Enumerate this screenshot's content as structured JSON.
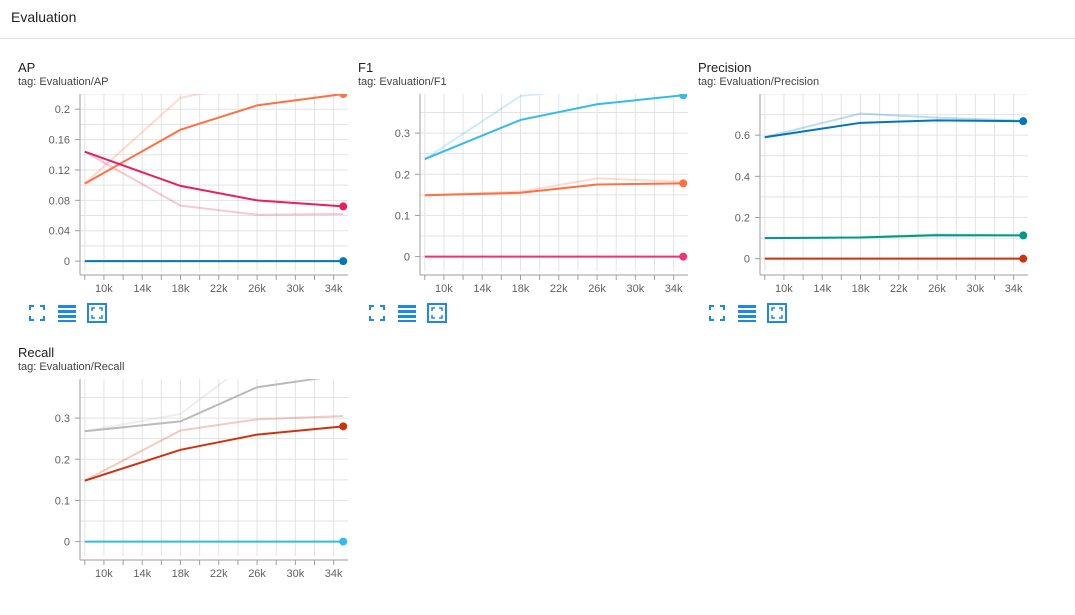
{
  "section": {
    "title": "Evaluation"
  },
  "toolbar_icons": [
    "expand-icon",
    "toggle-log-scale-icon",
    "fit-domain-icon"
  ],
  "charts": [
    {
      "id": "ap",
      "title": "AP",
      "tag": "tag: Evaluation/AP",
      "chart_data": {
        "type": "line",
        "x_ticks": [
          "10k",
          "14k",
          "18k",
          "22k",
          "26k",
          "30k",
          "34k"
        ],
        "x_tick_values": [
          10000,
          14000,
          18000,
          22000,
          26000,
          30000,
          34000
        ],
        "y_ticks": [
          "0",
          "0.04",
          "0.08",
          "0.12",
          "0.16",
          "0.2"
        ],
        "y_tick_values": [
          0,
          0.04,
          0.08,
          0.12,
          0.16,
          0.2
        ],
        "xlim": [
          7500,
          35500
        ],
        "ylim": [
          -0.013,
          0.22
        ],
        "grid": true,
        "series": [
          {
            "color": "#ff7043",
            "x": [
              8000,
              18000,
              26000,
              35000
            ],
            "values": [
              0.102,
              0.173,
              0.205,
              0.22
            ],
            "raw_x": [
              8000,
              18000,
              26000,
              35000
            ],
            "raw_values": [
              0.102,
              0.215,
              0.235,
              0.245
            ]
          },
          {
            "color": "#e91e63",
            "x": [
              8000,
              18000,
              26000,
              35000
            ],
            "values": [
              0.144,
              0.099,
              0.08,
              0.072
            ],
            "raw_x": [
              8000,
              18000,
              26000,
              35000
            ],
            "raw_values": [
              0.144,
              0.073,
              0.061,
              0.062
            ]
          },
          {
            "color": "#0077bb",
            "x": [
              8000,
              18000,
              26000,
              35000
            ],
            "values": [
              0,
              0,
              0,
              0
            ],
            "raw_x": [
              8000,
              18000,
              26000,
              35000
            ],
            "raw_values": [
              0,
              0,
              0,
              0
            ]
          }
        ]
      }
    },
    {
      "id": "f1",
      "title": "F1",
      "tag": "tag: Evaluation/F1",
      "chart_data": {
        "type": "line",
        "x_ticks": [
          "10k",
          "14k",
          "18k",
          "22k",
          "26k",
          "30k",
          "34k"
        ],
        "x_tick_values": [
          10000,
          14000,
          18000,
          22000,
          26000,
          30000,
          34000
        ],
        "y_ticks": [
          "0",
          "0.1",
          "0.2",
          "0.3"
        ],
        "y_tick_values": [
          0,
          0.1,
          0.2,
          0.3
        ],
        "xlim": [
          7500,
          35500
        ],
        "ylim": [
          -0.035,
          0.395
        ],
        "grid": true,
        "series": [
          {
            "color": "#33bbee",
            "x": [
              8000,
              18000,
              26000,
              35000
            ],
            "values": [
              0.237,
              0.332,
              0.37,
              0.392
            ],
            "raw_x": [
              8000,
              18000,
              26000,
              35000
            ],
            "raw_values": [
              0.237,
              0.39,
              0.41,
              0.42
            ]
          },
          {
            "color": "#ff7043",
            "x": [
              8000,
              18000,
              26000,
              35000
            ],
            "values": [
              0.149,
              0.155,
              0.175,
              0.178
            ],
            "raw_x": [
              8000,
              18000,
              26000,
              35000
            ],
            "raw_values": [
              0.149,
              0.158,
              0.19,
              0.182
            ]
          },
          {
            "color": "#ee3377",
            "x": [
              8000,
              18000,
              26000,
              35000
            ],
            "values": [
              0,
              0,
              0,
              0
            ],
            "raw_x": [
              8000,
              18000,
              26000,
              35000
            ],
            "raw_values": [
              0,
              0,
              0,
              0
            ]
          }
        ]
      }
    },
    {
      "id": "precision",
      "title": "Precision",
      "tag": "tag: Evaluation/Precision",
      "chart_data": {
        "type": "line",
        "x_ticks": [
          "10k",
          "14k",
          "18k",
          "22k",
          "26k",
          "30k",
          "34k"
        ],
        "x_tick_values": [
          10000,
          14000,
          18000,
          22000,
          26000,
          30000,
          34000
        ],
        "y_ticks": [
          "0",
          "0.2",
          "0.4",
          "0.6"
        ],
        "y_tick_values": [
          0,
          0.2,
          0.4,
          0.6
        ],
        "xlim": [
          7500,
          35500
        ],
        "ylim": [
          -0.06,
          0.8
        ],
        "grid": true,
        "series": [
          {
            "color": "#0077bb",
            "x": [
              8000,
              18000,
              26000,
              35000
            ],
            "values": [
              0.59,
              0.66,
              0.672,
              0.668
            ],
            "raw_x": [
              8000,
              18000,
              26000,
              35000
            ],
            "raw_values": [
              0.59,
              0.705,
              0.685,
              0.67
            ]
          },
          {
            "color": "#009988",
            "x": [
              8000,
              18000,
              26000,
              35000
            ],
            "values": [
              0.1,
              0.103,
              0.114,
              0.113
            ],
            "raw_x": [
              8000,
              18000,
              26000,
              35000
            ],
            "raw_values": [
              0.1,
              0.104,
              0.118,
              0.113
            ]
          },
          {
            "color": "#cc3311",
            "x": [
              8000,
              18000,
              26000,
              35000
            ],
            "values": [
              0,
              0,
              0,
              0
            ],
            "raw_x": [
              8000,
              18000,
              26000,
              35000
            ],
            "raw_values": [
              0,
              0,
              0,
              0
            ]
          }
        ]
      }
    },
    {
      "id": "recall",
      "title": "Recall",
      "tag": "tag: Evaluation/Recall",
      "chart_data": {
        "type": "line",
        "x_ticks": [
          "10k",
          "14k",
          "18k",
          "22k",
          "26k",
          "30k",
          "34k"
        ],
        "x_tick_values": [
          10000,
          14000,
          18000,
          22000,
          26000,
          30000,
          34000
        ],
        "y_ticks": [
          "0",
          "0.1",
          "0.2",
          "0.3"
        ],
        "y_tick_values": [
          0,
          0.1,
          0.2,
          0.3
        ],
        "xlim": [
          7500,
          35500
        ],
        "ylim": [
          -0.035,
          0.395
        ],
        "grid": true,
        "series": [
          {
            "color": "#bbbbbb",
            "x": [
              8000,
              18000,
              26000,
              35000
            ],
            "values": [
              0.268,
              0.292,
              0.375,
              0.405
            ],
            "raw_x": [
              8000,
              18000,
              26000,
              35000
            ],
            "raw_values": [
              0.268,
              0.31,
              0.45,
              0.5
            ]
          },
          {
            "color": "#cc3311",
            "x": [
              8000,
              18000,
              26000,
              35000
            ],
            "values": [
              0.148,
              0.223,
              0.26,
              0.28
            ],
            "raw_x": [
              8000,
              18000,
              26000,
              35000
            ],
            "raw_values": [
              0.148,
              0.27,
              0.297,
              0.305
            ]
          },
          {
            "color": "#33bbee",
            "x": [
              8000,
              18000,
              26000,
              35000
            ],
            "values": [
              0,
              0,
              0,
              0
            ],
            "raw_x": [
              8000,
              18000,
              26000,
              35000
            ],
            "raw_values": [
              0,
              0,
              0,
              0
            ]
          }
        ]
      }
    }
  ]
}
